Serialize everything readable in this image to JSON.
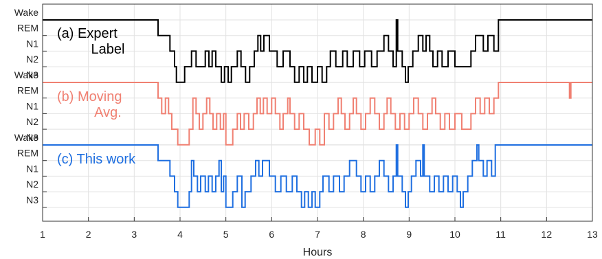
{
  "chart_data": {
    "type": "line",
    "xlabel": "Hours",
    "xlim": [
      1,
      13
    ],
    "x_ticks": [
      1,
      2,
      3,
      4,
      5,
      6,
      7,
      8,
      9,
      10,
      11,
      12,
      13
    ],
    "stage_labels": [
      "Wake",
      "REM",
      "N1",
      "N2",
      "N3"
    ],
    "grid": true,
    "panels": [
      {
        "label_lines": [
          "(a) Expert",
          "Label"
        ],
        "color": "#000000",
        "points": [
          [
            1.0,
            "Wake"
          ],
          [
            3.52,
            "REM"
          ],
          [
            3.78,
            "N1"
          ],
          [
            3.88,
            "N2"
          ],
          [
            3.92,
            "N3"
          ],
          [
            4.1,
            "N2"
          ],
          [
            4.25,
            "N1"
          ],
          [
            4.35,
            "N2"
          ],
          [
            4.55,
            "N1"
          ],
          [
            4.63,
            "N2"
          ],
          [
            4.7,
            "N1"
          ],
          [
            4.78,
            "N2"
          ],
          [
            4.9,
            "N3"
          ],
          [
            4.97,
            "N2"
          ],
          [
            5.05,
            "N3"
          ],
          [
            5.12,
            "N2"
          ],
          [
            5.25,
            "N1"
          ],
          [
            5.33,
            "N2"
          ],
          [
            5.43,
            "N3"
          ],
          [
            5.52,
            "N2"
          ],
          [
            5.62,
            "N1"
          ],
          [
            5.7,
            "REM"
          ],
          [
            5.76,
            "N1"
          ],
          [
            5.83,
            "REM"
          ],
          [
            5.95,
            "N1"
          ],
          [
            6.12,
            "N2"
          ],
          [
            6.25,
            "N1"
          ],
          [
            6.4,
            "N2"
          ],
          [
            6.5,
            "N3"
          ],
          [
            6.6,
            "N2"
          ],
          [
            6.7,
            "N3"
          ],
          [
            6.78,
            "N2"
          ],
          [
            6.88,
            "N3"
          ],
          [
            7.0,
            "N2"
          ],
          [
            7.1,
            "N3"
          ],
          [
            7.2,
            "N2"
          ],
          [
            7.28,
            "N1"
          ],
          [
            7.4,
            "N2"
          ],
          [
            7.55,
            "N1"
          ],
          [
            7.65,
            "N2"
          ],
          [
            7.78,
            "N1"
          ],
          [
            7.92,
            "N2"
          ],
          [
            8.03,
            "N1"
          ],
          [
            8.18,
            "N2"
          ],
          [
            8.3,
            "N1"
          ],
          [
            8.45,
            "REM"
          ],
          [
            8.55,
            "N1"
          ],
          [
            8.65,
            "N2"
          ],
          [
            8.72,
            "Wake"
          ],
          [
            8.75,
            "N1"
          ],
          [
            8.85,
            "N2"
          ],
          [
            8.92,
            "N3"
          ],
          [
            8.98,
            "N2"
          ],
          [
            9.08,
            "N1"
          ],
          [
            9.2,
            "REM"
          ],
          [
            9.3,
            "N1"
          ],
          [
            9.37,
            "REM"
          ],
          [
            9.45,
            "N1"
          ],
          [
            9.52,
            "N2"
          ],
          [
            9.62,
            "N1"
          ],
          [
            9.72,
            "N2"
          ],
          [
            9.85,
            "N1"
          ],
          [
            10.0,
            "N2"
          ],
          [
            10.35,
            "N1"
          ],
          [
            10.45,
            "REM"
          ],
          [
            10.62,
            "N1"
          ],
          [
            10.72,
            "REM"
          ],
          [
            10.85,
            "N1"
          ],
          [
            10.95,
            "Wake"
          ],
          [
            13.0,
            "Wake"
          ]
        ]
      },
      {
        "label_lines": [
          "(b) Moving",
          "Avg."
        ],
        "color": "#f08072",
        "points": [
          [
            1.0,
            "Wake"
          ],
          [
            3.52,
            "REM"
          ],
          [
            3.6,
            "N1"
          ],
          [
            3.68,
            "REM"
          ],
          [
            3.75,
            "N1"
          ],
          [
            3.82,
            "N2"
          ],
          [
            3.95,
            "N3"
          ],
          [
            4.2,
            "N2"
          ],
          [
            4.28,
            "REM"
          ],
          [
            4.35,
            "N1"
          ],
          [
            4.42,
            "N2"
          ],
          [
            4.5,
            "N1"
          ],
          [
            4.58,
            "REM"
          ],
          [
            4.65,
            "N1"
          ],
          [
            4.72,
            "N2"
          ],
          [
            4.8,
            "N1"
          ],
          [
            4.88,
            "N2"
          ],
          [
            4.95,
            "N1"
          ],
          [
            5.0,
            "N3"
          ],
          [
            5.15,
            "N2"
          ],
          [
            5.25,
            "N1"
          ],
          [
            5.32,
            "N2"
          ],
          [
            5.4,
            "N1"
          ],
          [
            5.5,
            "N2"
          ],
          [
            5.6,
            "N1"
          ],
          [
            5.68,
            "REM"
          ],
          [
            5.75,
            "N1"
          ],
          [
            5.82,
            "REM"
          ],
          [
            5.9,
            "N1"
          ],
          [
            6.0,
            "REM"
          ],
          [
            6.08,
            "N1"
          ],
          [
            6.18,
            "N2"
          ],
          [
            6.25,
            "N1"
          ],
          [
            6.35,
            "REM"
          ],
          [
            6.4,
            "N1"
          ],
          [
            6.5,
            "N2"
          ],
          [
            6.6,
            "N1"
          ],
          [
            6.7,
            "N2"
          ],
          [
            6.82,
            "N3"
          ],
          [
            6.95,
            "N2"
          ],
          [
            7.05,
            "N3"
          ],
          [
            7.15,
            "N1"
          ],
          [
            7.25,
            "N2"
          ],
          [
            7.35,
            "N1"
          ],
          [
            7.45,
            "REM"
          ],
          [
            7.52,
            "N1"
          ],
          [
            7.6,
            "N2"
          ],
          [
            7.7,
            "N1"
          ],
          [
            7.78,
            "REM"
          ],
          [
            7.85,
            "N1"
          ],
          [
            7.95,
            "N2"
          ],
          [
            8.05,
            "N1"
          ],
          [
            8.15,
            "REM"
          ],
          [
            8.25,
            "N1"
          ],
          [
            8.35,
            "N2"
          ],
          [
            8.45,
            "N1"
          ],
          [
            8.52,
            "REM"
          ],
          [
            8.6,
            "N1"
          ],
          [
            8.7,
            "N2"
          ],
          [
            8.8,
            "N1"
          ],
          [
            8.9,
            "N2"
          ],
          [
            9.0,
            "N1"
          ],
          [
            9.1,
            "REM"
          ],
          [
            9.2,
            "N1"
          ],
          [
            9.3,
            "N2"
          ],
          [
            9.4,
            "N1"
          ],
          [
            9.5,
            "REM"
          ],
          [
            9.58,
            "N1"
          ],
          [
            9.68,
            "N2"
          ],
          [
            9.78,
            "N1"
          ],
          [
            9.88,
            "N2"
          ],
          [
            10.0,
            "N1"
          ],
          [
            10.15,
            "N2"
          ],
          [
            10.35,
            "N1"
          ],
          [
            10.45,
            "REM"
          ],
          [
            10.55,
            "N1"
          ],
          [
            10.65,
            "REM"
          ],
          [
            10.75,
            "N1"
          ],
          [
            10.85,
            "REM"
          ],
          [
            10.95,
            "Wake"
          ],
          [
            12.5,
            "REM"
          ],
          [
            12.53,
            "Wake"
          ],
          [
            13.0,
            "Wake"
          ]
        ]
      },
      {
        "label_lines": [
          "(c) This work"
        ],
        "color": "#1f6fe0",
        "points": [
          [
            1.0,
            "Wake"
          ],
          [
            3.52,
            "REM"
          ],
          [
            3.78,
            "N1"
          ],
          [
            3.88,
            "N2"
          ],
          [
            3.95,
            "N3"
          ],
          [
            4.2,
            "N2"
          ],
          [
            4.25,
            "REM"
          ],
          [
            4.3,
            "N1"
          ],
          [
            4.38,
            "N2"
          ],
          [
            4.45,
            "N1"
          ],
          [
            4.55,
            "N2"
          ],
          [
            4.62,
            "N1"
          ],
          [
            4.7,
            "N2"
          ],
          [
            4.78,
            "N1"
          ],
          [
            4.85,
            "REM"
          ],
          [
            4.9,
            "N2"
          ],
          [
            4.95,
            "N1"
          ],
          [
            5.0,
            "N3"
          ],
          [
            5.15,
            "N2"
          ],
          [
            5.25,
            "N1"
          ],
          [
            5.35,
            "N3"
          ],
          [
            5.42,
            "N2"
          ],
          [
            5.55,
            "N1"
          ],
          [
            5.65,
            "REM"
          ],
          [
            5.72,
            "N1"
          ],
          [
            5.8,
            "REM"
          ],
          [
            5.95,
            "N1"
          ],
          [
            6.08,
            "N2"
          ],
          [
            6.2,
            "N1"
          ],
          [
            6.32,
            "N2"
          ],
          [
            6.45,
            "N1"
          ],
          [
            6.55,
            "N2"
          ],
          [
            6.65,
            "N3"
          ],
          [
            6.72,
            "N2"
          ],
          [
            6.8,
            "N3"
          ],
          [
            6.88,
            "N2"
          ],
          [
            6.95,
            "N3"
          ],
          [
            7.05,
            "N2"
          ],
          [
            7.12,
            "N1"
          ],
          [
            7.25,
            "N2"
          ],
          [
            7.35,
            "N1"
          ],
          [
            7.48,
            "N2"
          ],
          [
            7.58,
            "N1"
          ],
          [
            7.7,
            "REM"
          ],
          [
            7.85,
            "N1"
          ],
          [
            7.95,
            "N2"
          ],
          [
            8.05,
            "N1"
          ],
          [
            8.15,
            "N2"
          ],
          [
            8.25,
            "N1"
          ],
          [
            8.35,
            "REM"
          ],
          [
            8.45,
            "N1"
          ],
          [
            8.55,
            "N2"
          ],
          [
            8.65,
            "N1"
          ],
          [
            8.72,
            "Wake"
          ],
          [
            8.75,
            "N1"
          ],
          [
            8.85,
            "N2"
          ],
          [
            8.92,
            "N3"
          ],
          [
            8.98,
            "N2"
          ],
          [
            9.05,
            "N1"
          ],
          [
            9.15,
            "REM"
          ],
          [
            9.25,
            "N1"
          ],
          [
            9.3,
            "Wake"
          ],
          [
            9.33,
            "N1"
          ],
          [
            9.45,
            "N2"
          ],
          [
            9.55,
            "N1"
          ],
          [
            9.65,
            "N2"
          ],
          [
            9.75,
            "N1"
          ],
          [
            9.85,
            "N2"
          ],
          [
            9.95,
            "N1"
          ],
          [
            10.05,
            "N2"
          ],
          [
            10.12,
            "N3"
          ],
          [
            10.18,
            "N2"
          ],
          [
            10.28,
            "N1"
          ],
          [
            10.38,
            "REM"
          ],
          [
            10.48,
            "Wake"
          ],
          [
            10.52,
            "REM"
          ],
          [
            10.62,
            "N1"
          ],
          [
            10.7,
            "REM"
          ],
          [
            10.8,
            "N1"
          ],
          [
            10.88,
            "Wake"
          ],
          [
            13.0,
            "Wake"
          ]
        ]
      }
    ]
  }
}
